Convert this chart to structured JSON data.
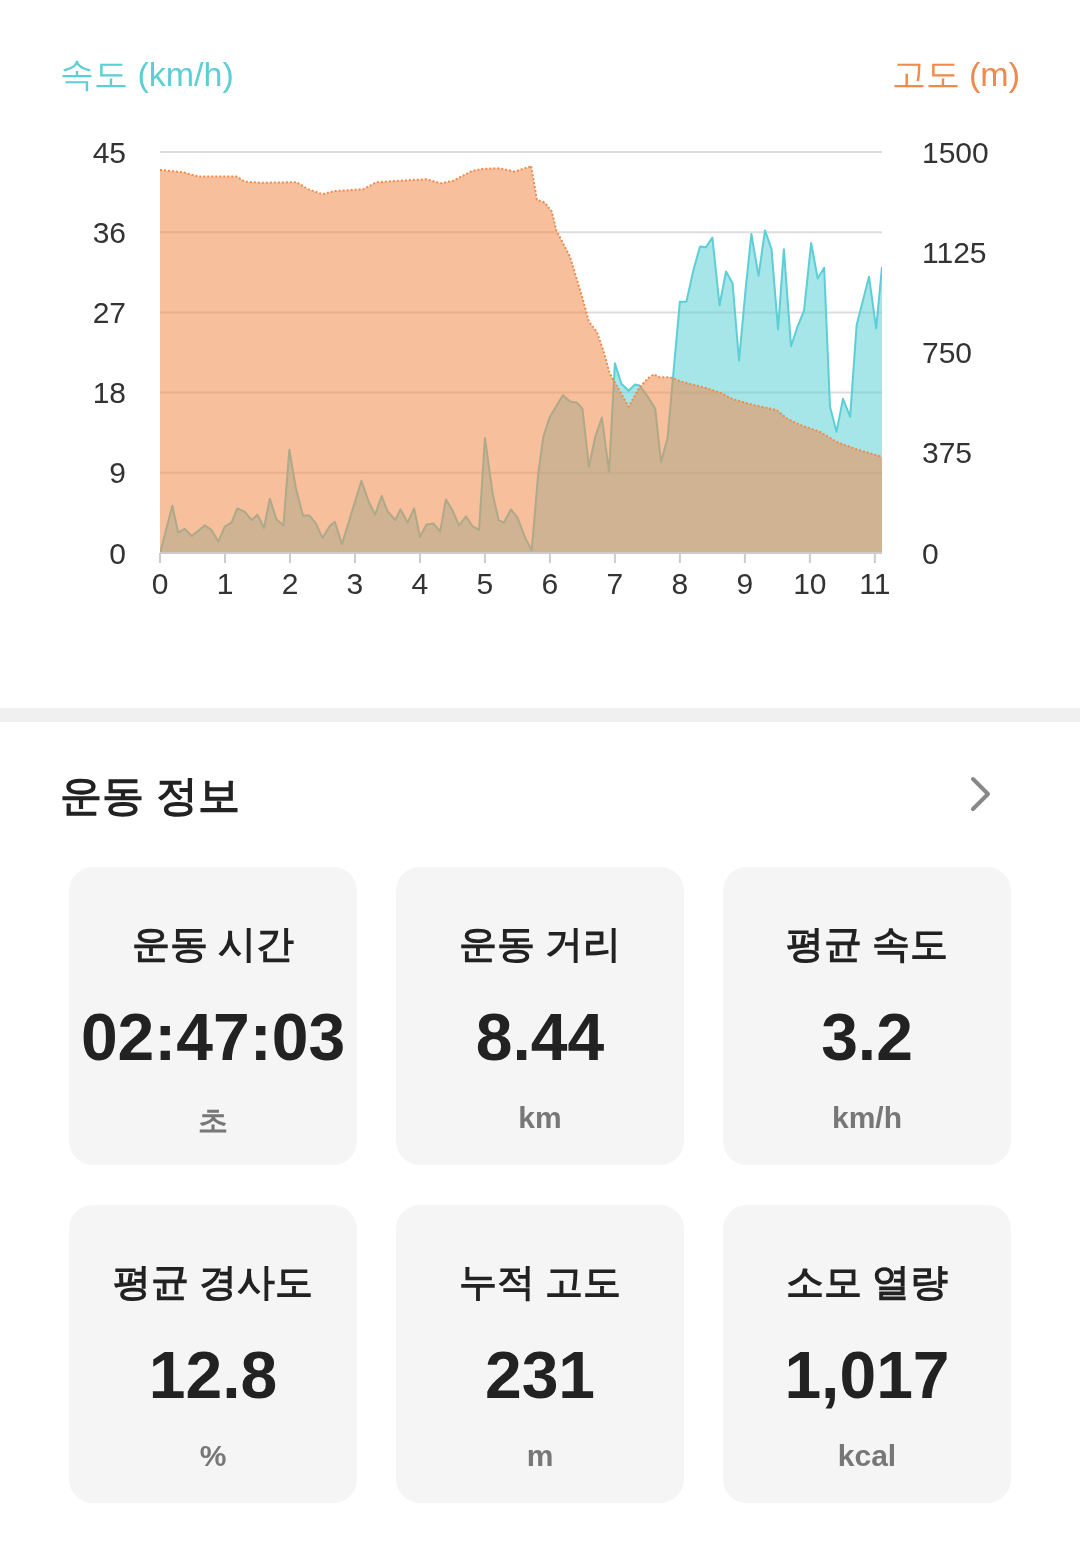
{
  "chart_data": [
    {
      "type": "area",
      "ylabel": "속도 (km/h)",
      "y2label": "고도 (m)",
      "xlim": [
        0,
        11.11
      ],
      "xticks": [
        0,
        1,
        2,
        3,
        4,
        5,
        6,
        7,
        8,
        9,
        10,
        11
      ],
      "ylim": [
        0,
        45
      ],
      "yticks": [
        0,
        9,
        18,
        27,
        36,
        45
      ],
      "y2lim": [
        0,
        1500
      ],
      "y2ticks": [
        0,
        375,
        750,
        1125,
        1500
      ],
      "grid": "y",
      "series": [
        {
          "color": "#5ccfd6",
          "line_style": "solid",
          "x": [
            0,
            0.19,
            0.28,
            0.38,
            0.49,
            0.69,
            0.79,
            0.9,
            1.0,
            1.1,
            1.19,
            1.31,
            1.41,
            1.5,
            1.6,
            1.69,
            1.79,
            1.9,
            1.99,
            2.09,
            2.2,
            2.3,
            2.4,
            2.5,
            2.61,
            2.69,
            2.8,
            3.1,
            3.21,
            3.31,
            3.41,
            3.5,
            3.62,
            3.7,
            3.81,
            3.91,
            4.0,
            4.1,
            4.21,
            4.31,
            4.4,
            4.5,
            4.6,
            4.71,
            4.81,
            4.91,
            5.0,
            5.12,
            5.21,
            5.29,
            5.4,
            5.5,
            5.62,
            5.72,
            5.82,
            5.9,
            6.0,
            6.2,
            6.31,
            6.41,
            6.5,
            6.6,
            6.7,
            6.8,
            6.91,
            7.0,
            7.1,
            7.21,
            7.31,
            7.38,
            7.51,
            7.62,
            7.71,
            7.81,
            7.9,
            8.0,
            8.1,
            8.21,
            8.31,
            8.4,
            8.5,
            8.61,
            8.71,
            8.81,
            8.91,
            9.01,
            9.1,
            9.21,
            9.31,
            9.41,
            9.51,
            9.6,
            9.71,
            9.81,
            9.91,
            10.02,
            10.12,
            10.22,
            10.31,
            10.41,
            10.51,
            10.62,
            10.72,
            10.91,
            11.02,
            11.11
          ],
          "values": [
            0,
            5.3,
            2.3,
            2.7,
            1.9,
            3.1,
            2.6,
            1.3,
            3.0,
            3.4,
            5.0,
            4.6,
            3.7,
            4.3,
            2.8,
            6.1,
            3.8,
            3.1,
            11.6,
            7.3,
            4.2,
            4.2,
            3.3,
            1.7,
            3.0,
            3.5,
            1.0,
            8.1,
            5.8,
            4.3,
            6.4,
            4.7,
            3.7,
            4.9,
            3.4,
            5.0,
            1.8,
            3.2,
            3.3,
            2.4,
            6.0,
            4.8,
            3.1,
            4.1,
            3.0,
            2.6,
            12.9,
            6.6,
            3.7,
            3.4,
            4.9,
            4.0,
            1.7,
            0.3,
            8.9,
            13.1,
            15.3,
            17.7,
            17.0,
            16.9,
            16.2,
            9.7,
            13.1,
            15.2,
            9.1,
            21.3,
            19.0,
            18.2,
            18.9,
            18.8,
            17.5,
            16.2,
            10.2,
            12.9,
            20.2,
            28.2,
            28.2,
            31.8,
            34.4,
            34.3,
            35.4,
            27.8,
            31.6,
            30.3,
            21.6,
            29.5,
            35.8,
            31.1,
            36.2,
            34.1,
            25.1,
            34.1,
            23.2,
            25.4,
            27.2,
            34.8,
            30.8,
            32.0,
            16.4,
            13.6,
            17.3,
            15.3,
            25.6,
            31.0,
            25.2,
            32.1
          ]
        },
        {
          "color": "#f08a4b",
          "axis": "y2",
          "line_style": "dotted",
          "x": [
            0,
            0.36,
            0.59,
            1.18,
            1.31,
            1.54,
            2.1,
            2.28,
            2.5,
            2.69,
            3.13,
            3.33,
            3.85,
            4.1,
            4.32,
            4.51,
            4.8,
            4.97,
            5.23,
            5.46,
            5.69,
            5.71,
            5.8,
            5.92,
            6.03,
            6.1,
            6.31,
            6.51,
            6.6,
            6.72,
            6.82,
            6.92,
            7.21,
            7.38,
            7.51,
            7.6,
            7.69,
            7.85,
            8.03,
            8.41,
            8.62,
            8.82,
            9.13,
            9.49,
            9.64,
            9.85,
            10.15,
            10.41,
            10.67,
            10.87,
            11.11
          ],
          "values": [
            1433,
            1424,
            1408,
            1408,
            1389,
            1385,
            1387,
            1361,
            1342,
            1354,
            1361,
            1387,
            1395,
            1398,
            1383,
            1392,
            1429,
            1437,
            1439,
            1427,
            1445,
            1449,
            1321,
            1311,
            1277,
            1206,
            1108,
            946,
            865,
            828,
            759,
            672,
            547,
            620,
            654,
            668,
            657,
            657,
            641,
            616,
            600,
            575,
            554,
            535,
            504,
            479,
            454,
            416,
            392,
            377,
            360
          ]
        }
      ]
    },
    {
      "type": "other",
      "title": "운동 정보",
      "annotations": [
        "운동 시간",
        "02:47:03",
        "초",
        "운동 거리",
        "8.44",
        "km",
        "평균 속도",
        "3.2",
        "km/h",
        "평균 경사도",
        "12.8",
        "%",
        "누적 고도",
        "231",
        "m",
        "소모 열량",
        "1,017",
        "kcal"
      ]
    }
  ]
}
